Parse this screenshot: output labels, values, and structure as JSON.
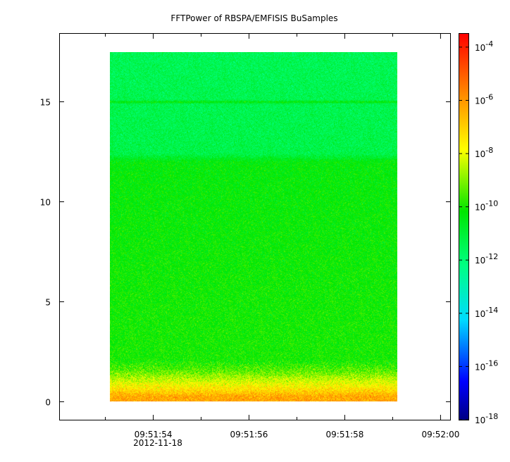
{
  "chart_data": {
    "type": "heatmap",
    "title": "FFTPower of RBSPA/EMFISIS  BuSamples",
    "xlabel": "",
    "ylabel": "",
    "x_tick_labels": [
      "09:51:54",
      "09:51:56",
      "09:51:58",
      "09:52:00"
    ],
    "x_tick_seconds": [
      54,
      56,
      58,
      60
    ],
    "x_minor_seconds": [
      53,
      55,
      57,
      59
    ],
    "x_date_label": "2012-11-18",
    "xlim_seconds": [
      52.05,
      60.2
    ],
    "data_x_range_seconds": [
      53.1,
      59.1
    ],
    "y_ticks": [
      0,
      5,
      10,
      15
    ],
    "ylim": [
      -0.9,
      18.4
    ],
    "data_y_range": [
      0,
      17.5
    ],
    "grid": false,
    "colorbar": {
      "scale": "log",
      "range_exponent": [
        -18,
        -3.5
      ],
      "tick_exponents": [
        -4,
        -6,
        -8,
        -10,
        -12,
        -14,
        -16,
        -18
      ],
      "tick_labels": [
        "10-4",
        "10-6",
        "10-8",
        "10-10",
        "10-12",
        "10-14",
        "10-16",
        "10-18"
      ]
    },
    "power_profile": [
      {
        "y": 0.25,
        "log10_power": -6.3
      },
      {
        "y": 0.6,
        "log10_power": -7.3
      },
      {
        "y": 1.0,
        "log10_power": -8.2
      },
      {
        "y": 1.5,
        "log10_power": -9.3
      },
      {
        "y": 2.0,
        "log10_power": -10.0
      },
      {
        "y": 6.0,
        "log10_power": -10.1
      },
      {
        "y": 12.0,
        "log10_power": -10.3
      },
      {
        "y": 12.4,
        "log10_power": -11.3
      },
      {
        "y": 14.9,
        "log10_power": -11.4
      },
      {
        "y": 15.0,
        "log10_power": -10.2
      },
      {
        "y": 15.1,
        "log10_power": -11.4
      },
      {
        "y": 17.5,
        "log10_power": -11.5
      }
    ]
  }
}
